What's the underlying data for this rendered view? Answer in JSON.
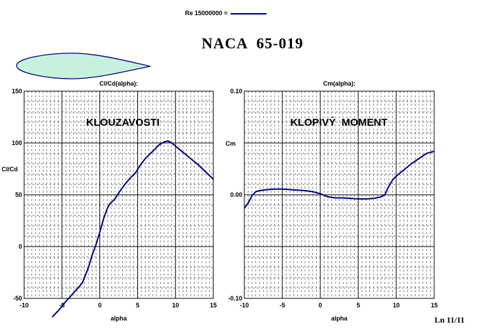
{
  "legend": {
    "label": "Re 15000000 =",
    "color": "#000080"
  },
  "title": "NACA  65-019",
  "page_number": "Ln 11/11",
  "chart_data": [
    {
      "type": "line",
      "title": "Cl/Cd(alpha):",
      "annotation": "KLOUZAVOSTI",
      "xlabel": "alpha",
      "ylabel": "Cl/Cd",
      "xlim": [
        -10,
        15
      ],
      "ylim": [
        -50,
        150
      ],
      "xticks": [
        "-10",
        "-5",
        "0",
        "5",
        "10",
        "15"
      ],
      "yticks": [
        "150",
        "100",
        "50",
        "0",
        "-50"
      ],
      "grid": true,
      "series": [
        {
          "color": "#000080",
          "x": [
            -6.3,
            -5.5,
            -4.5,
            -3.5,
            -2.3,
            -1.5,
            -1.0,
            -0.5,
            0.0,
            0.5,
            1.0,
            1.3,
            2.0,
            2.8,
            3.3,
            4.0,
            4.7,
            5.3,
            6.0,
            7.0,
            7.8,
            8.5,
            9.0,
            9.5,
            10.0,
            11.0,
            12.0,
            13.0,
            14.0,
            15.0
          ],
          "y": [
            -68,
            -62,
            -53,
            -45,
            -35,
            -20,
            -8,
            2,
            14,
            27,
            37,
            41,
            46,
            55,
            60,
            66,
            71,
            78,
            85,
            92,
            98,
            101,
            102,
            100,
            97,
            91,
            85,
            79,
            72,
            65
          ]
        }
      ]
    },
    {
      "type": "line",
      "title": "Cm(alpha):",
      "annotation": "KLOPIVÝ  MOMENT",
      "xlabel": "alpha",
      "ylabel": "Cm",
      "xlim": [
        -10,
        15
      ],
      "ylim": [
        -0.1,
        0.1
      ],
      "xticks": [
        "-10",
        "-5",
        "0",
        "5",
        "10",
        "15"
      ],
      "yticks": [
        "0.10",
        "0.00",
        "-0.10"
      ],
      "grid": true,
      "series": [
        {
          "color": "#000080",
          "x": [
            -10,
            -9.5,
            -9,
            -8.5,
            -8,
            -7,
            -6,
            -5,
            -4,
            -3,
            -2,
            -1,
            0,
            1,
            2,
            3,
            4,
            5,
            6,
            7,
            8,
            8.5,
            9,
            9.5,
            10,
            11,
            12,
            13,
            14,
            15
          ],
          "y": [
            -0.013,
            -0.008,
            -0.001,
            0.003,
            0.004,
            0.005,
            0.0055,
            0.0055,
            0.005,
            0.0045,
            0.004,
            0.003,
            0.001,
            -0.002,
            -0.003,
            -0.003,
            -0.0035,
            -0.004,
            -0.004,
            -0.0035,
            -0.002,
            0.0,
            0.008,
            0.014,
            0.018,
            0.024,
            0.03,
            0.035,
            0.04,
            0.042
          ]
        }
      ]
    }
  ]
}
